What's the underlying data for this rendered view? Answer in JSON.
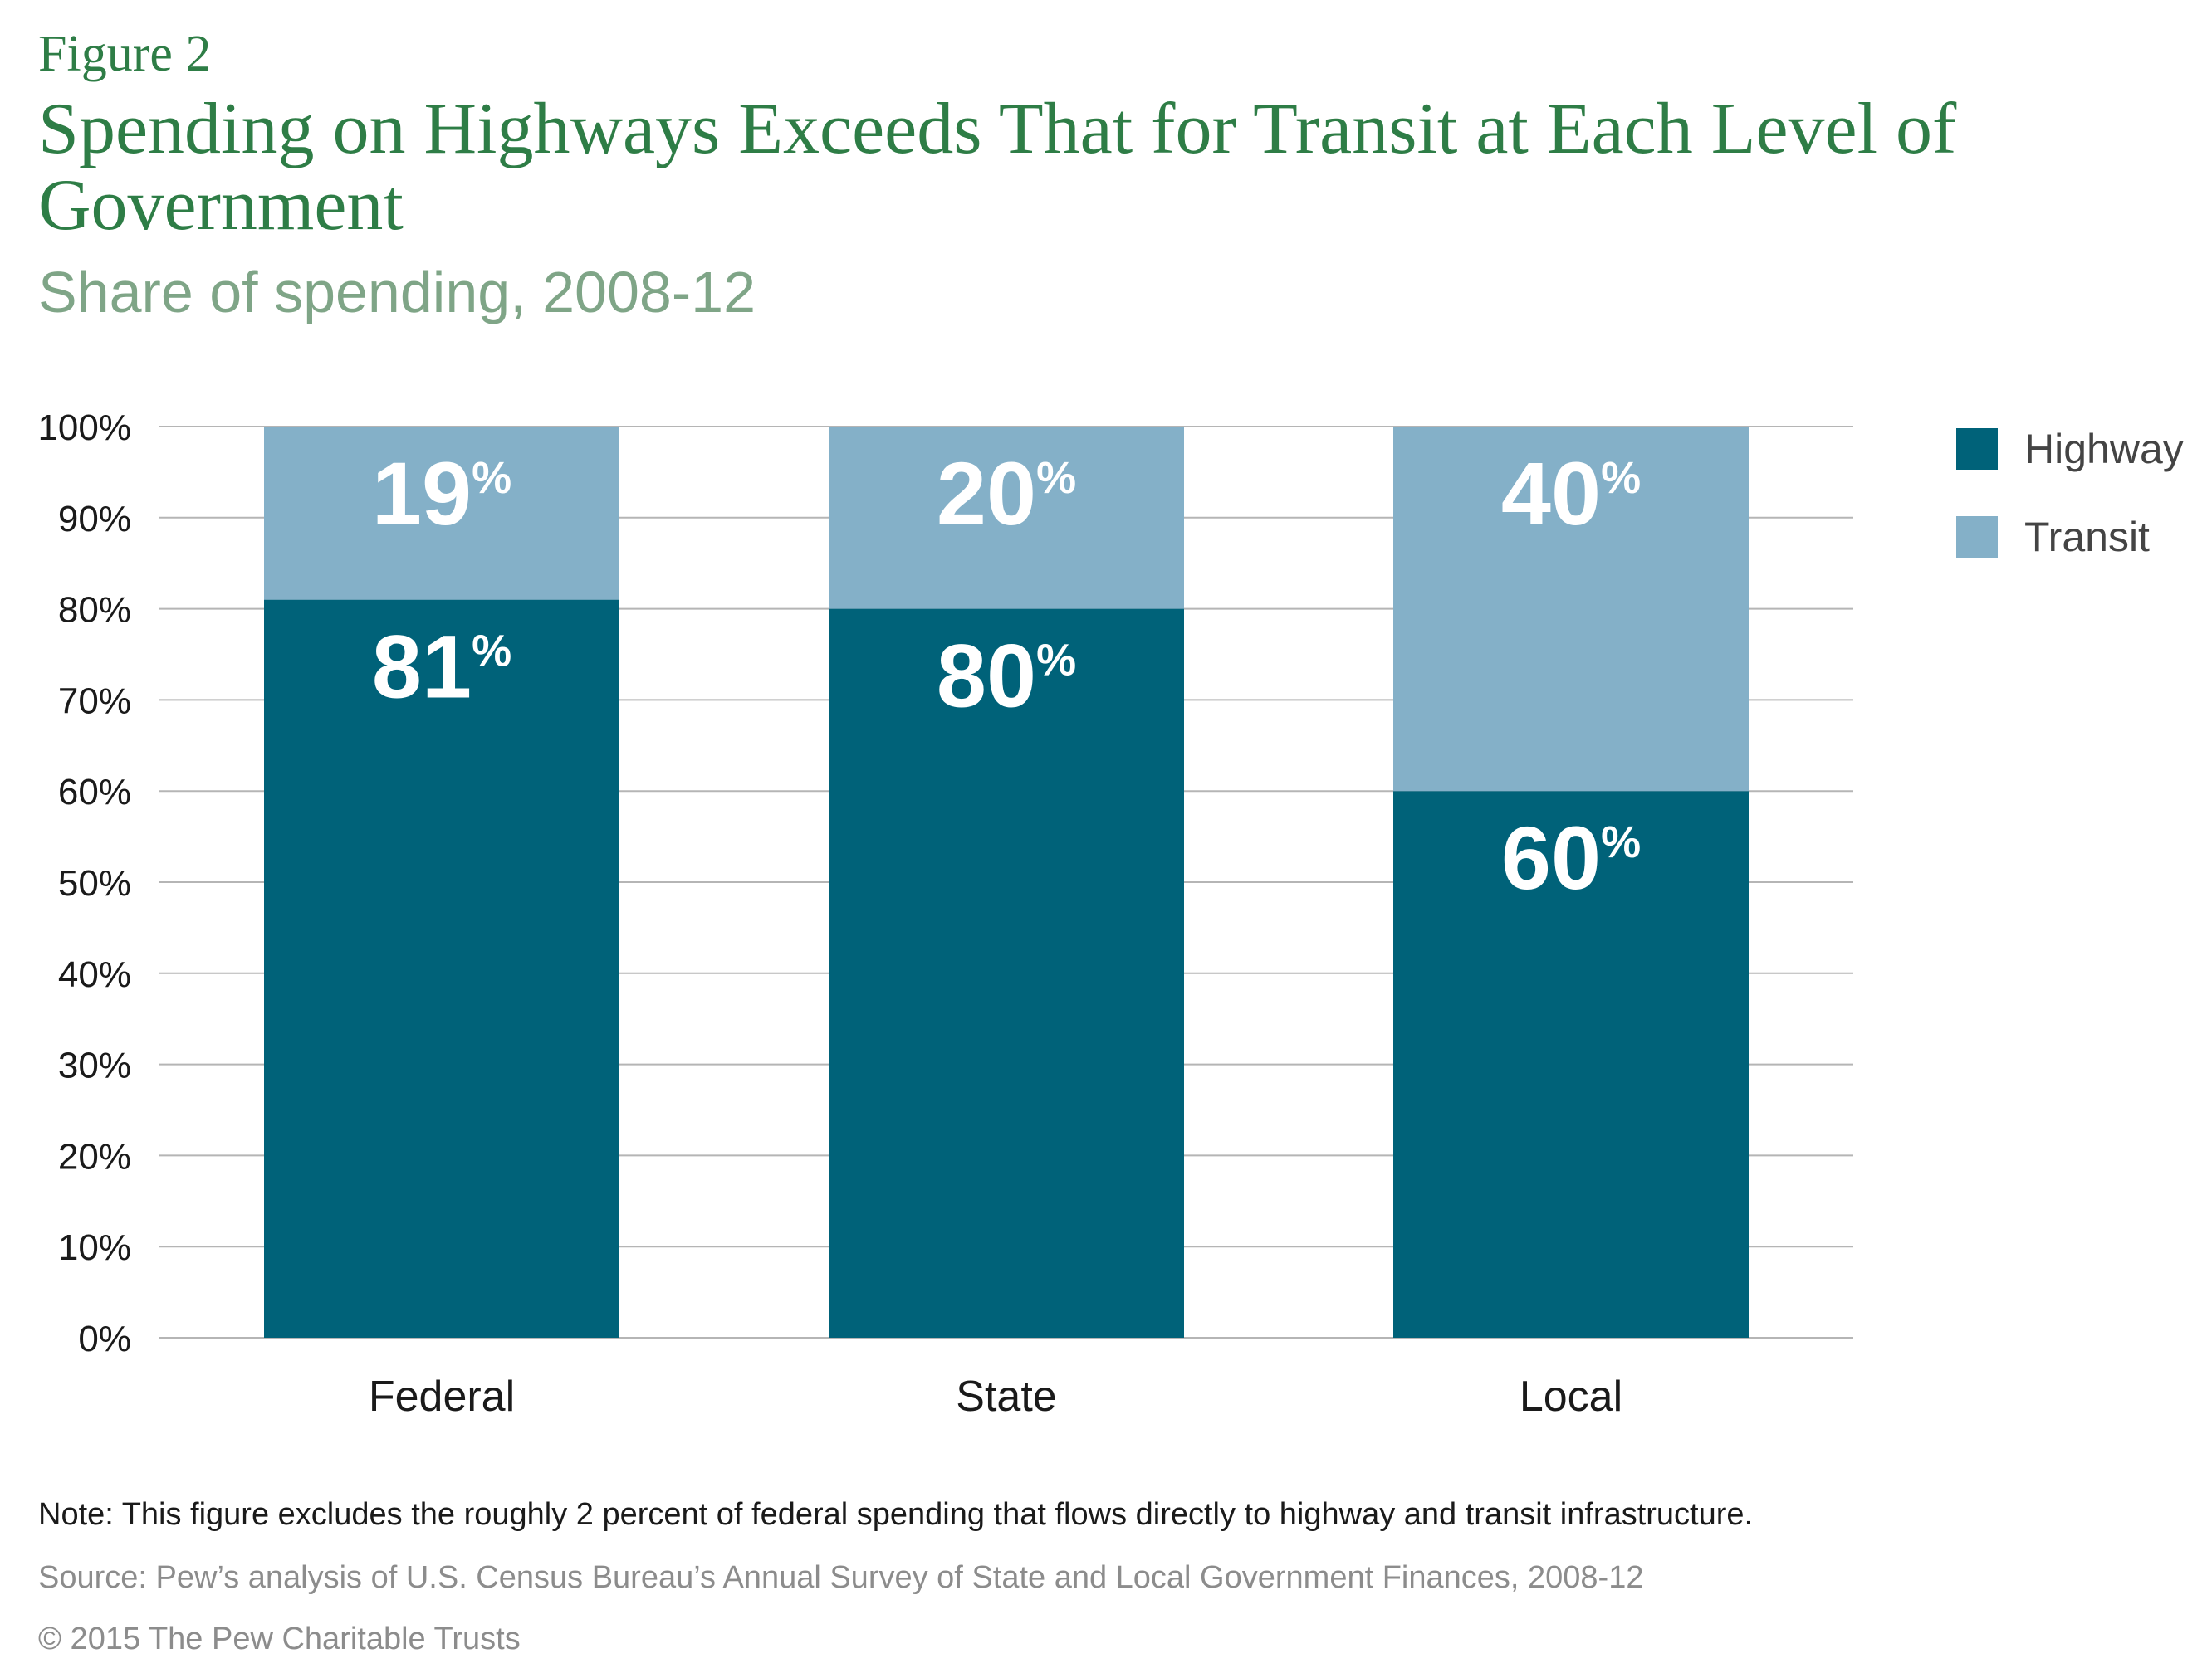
{
  "header": {
    "figure_label": "Figure 2",
    "title": "Spending on Highways Exceeds That for Transit at Each Level of Government",
    "subtitle": "Share of spending, 2008-12"
  },
  "colors": {
    "highway": "#006279",
    "transit": "#84b0c8",
    "grid": "#b5b5b5",
    "title": "#2e7d46",
    "subtitle": "#7fa587"
  },
  "legend": {
    "placement": "top-right",
    "items": [
      {
        "label": "Highway",
        "color": "#006279"
      },
      {
        "label": "Transit",
        "color": "#84b0c8"
      }
    ]
  },
  "chart_data": {
    "type": "bar",
    "stacked": true,
    "categories": [
      "Federal",
      "State",
      "Local"
    ],
    "series": [
      {
        "name": "Highway",
        "values": [
          81,
          80,
          60
        ],
        "labels": [
          "81",
          "80",
          "60"
        ]
      },
      {
        "name": "Transit",
        "values": [
          19,
          20,
          40
        ],
        "labels": [
          "19",
          "20",
          "40"
        ]
      }
    ],
    "data_label_suffix": "%",
    "ylim": [
      0,
      100
    ],
    "yticks": [
      0,
      10,
      20,
      30,
      40,
      50,
      60,
      70,
      80,
      90,
      100
    ],
    "ytick_labels": [
      "0%",
      "10%",
      "20%",
      "30%",
      "40%",
      "50%",
      "60%",
      "70%",
      "80%",
      "90%",
      "100%"
    ],
    "grid": true
  },
  "footer": {
    "note": "Note: This figure excludes the roughly 2 percent of federal spending that flows directly to highway and transit infrastructure.",
    "source": "Source: Pew’s analysis of U.S. Census Bureau’s Annual Survey of State and Local Government Finances, 2008-12",
    "copyright": "© 2015 The Pew Charitable Trusts"
  }
}
